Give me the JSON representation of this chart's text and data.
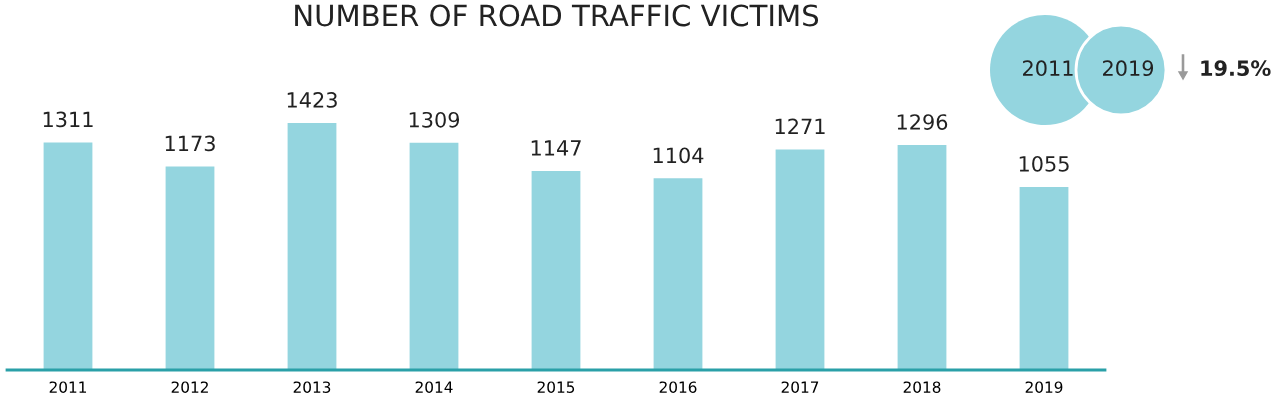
{
  "chart_data": {
    "type": "bar",
    "title": "NUMBER OF ROAD TRAFFIC VICTIMS",
    "categories": [
      "2011",
      "2012",
      "2013",
      "2014",
      "2015",
      "2016",
      "2017",
      "2018",
      "2019"
    ],
    "values": [
      1311,
      1173,
      1423,
      1309,
      1147,
      1104,
      1271,
      1296,
      1055
    ],
    "color": "#94d5df",
    "data_labels": true,
    "grid": false,
    "legend": false,
    "tick_labels": "x",
    "annotations": [
      "2011",
      "2019",
      "19.5%"
    ]
  }
}
